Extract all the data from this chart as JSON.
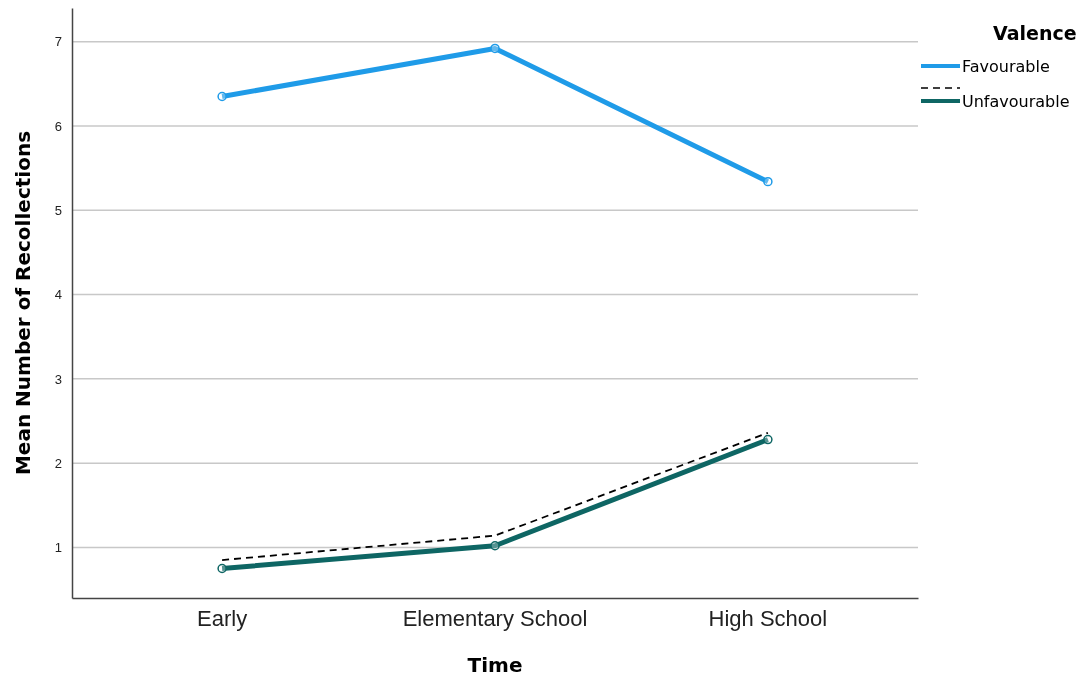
{
  "chart_data": {
    "type": "line",
    "xlabel": "Time",
    "ylabel": "Mean Number of Recollections",
    "legend_title": "Valence",
    "categories": [
      "Early",
      "Elementary School",
      "High School"
    ],
    "series": [
      {
        "name": "Favourable",
        "color": "#1f9be8",
        "values": [
          6.35,
          6.92,
          5.34
        ]
      },
      {
        "color": "#000000",
        "values": [
          0.85,
          1.14,
          2.36
        ],
        "marker": "none",
        "line_style": "dashed"
      },
      {
        "name": "Unfavourable",
        "color": "#0e6664",
        "values": [
          0.75,
          1.02,
          2.28
        ]
      }
    ],
    "ylim": [
      0.4,
      7.4
    ],
    "yticks": [
      1,
      2,
      3,
      4,
      5,
      6,
      7
    ],
    "grid": "y",
    "legend": "top right",
    "marker": "circle",
    "line_style": "solid"
  }
}
